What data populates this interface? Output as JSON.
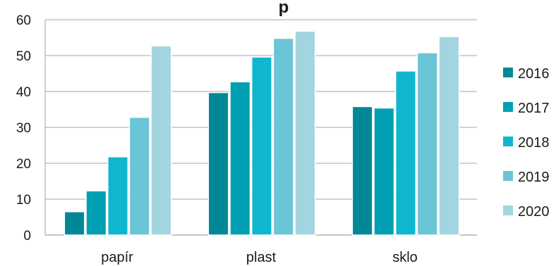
{
  "chart_data": {
    "type": "bar",
    "title": "p",
    "categories": [
      "papír",
      "plast",
      "sklo"
    ],
    "series": [
      {
        "name": "2016",
        "color": "#008896",
        "values": [
          6.5,
          39.7,
          35.8
        ]
      },
      {
        "name": "2017",
        "color": "#009fb3",
        "values": [
          12.3,
          42.7,
          35.4
        ]
      },
      {
        "name": "2018",
        "color": "#0fb6cf",
        "values": [
          21.8,
          49.6,
          45.7
        ]
      },
      {
        "name": "2019",
        "color": "#6ac5d6",
        "values": [
          32.8,
          54.8,
          50.8
        ]
      },
      {
        "name": "2020",
        "color": "#a3d5e0",
        "values": [
          52.7,
          56.8,
          55.3
        ]
      }
    ],
    "ylim": [
      0,
      60
    ],
    "yticks": [
      0,
      10,
      20,
      30,
      40,
      50,
      60
    ],
    "xlabel": "",
    "ylabel": "",
    "grid": true,
    "legend_position": "right"
  }
}
